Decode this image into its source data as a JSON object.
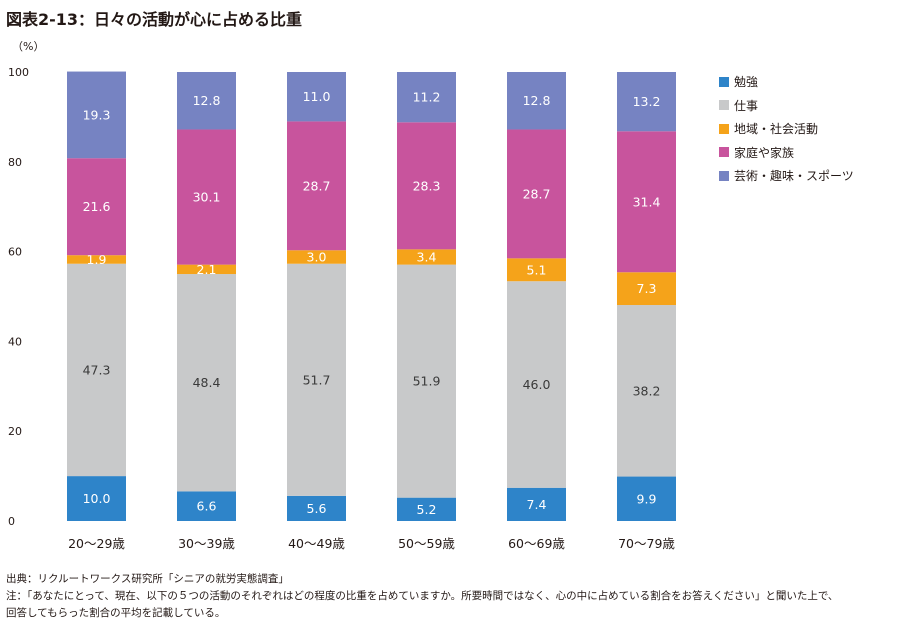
{
  "title": "図表2-13：日々の活動が心に占める比重",
  "chart_data": {
    "type": "bar",
    "stacked": true,
    "title": "図表2-13：日々の活動が心に占める比重",
    "ylabel": "（%）",
    "xlabel": "",
    "ylim": [
      0,
      100
    ],
    "yticks": [
      0,
      20,
      40,
      60,
      80,
      100
    ],
    "grid": false,
    "legend_position": "right",
    "categories": [
      "20〜29歳",
      "30〜39歳",
      "40〜49歳",
      "50〜59歳",
      "60〜69歳",
      "70〜79歳"
    ],
    "series": [
      {
        "name": "勉強",
        "color": "#2E84C9",
        "label_color": "#ffffff",
        "values": [
          10.0,
          6.6,
          5.6,
          5.2,
          7.4,
          9.9
        ],
        "labels": [
          "10.0",
          "6.6",
          "5.6",
          "5.2",
          "7.4",
          "9.9"
        ]
      },
      {
        "name": "仕事",
        "color": "#C8C9CA",
        "label_color": "#3a3a3a",
        "values": [
          47.3,
          48.4,
          51.7,
          51.9,
          46.0,
          38.2
        ],
        "labels": [
          "47.3",
          "48.4",
          "51.7",
          "51.9",
          "46.0",
          "38.2"
        ]
      },
      {
        "name": "地域・社会活動",
        "color": "#F5A31A",
        "label_color": "#ffffff",
        "values": [
          1.9,
          2.1,
          3.0,
          3.4,
          5.1,
          7.3
        ],
        "labels": [
          "1.9",
          "2.1",
          "3.0",
          "3.4",
          "5.1",
          "7.3"
        ]
      },
      {
        "name": "家庭や家族",
        "color": "#C8549D",
        "label_color": "#ffffff",
        "values": [
          21.6,
          30.1,
          28.7,
          28.3,
          28.7,
          31.4
        ],
        "labels": [
          "21.6",
          "30.1",
          "28.7",
          "28.3",
          "28.7",
          "31.4"
        ]
      },
      {
        "name": "芸術・趣味・スポーツ",
        "color": "#7683C2",
        "label_color": "#ffffff",
        "values": [
          19.3,
          12.8,
          11.0,
          11.2,
          12.8,
          13.2
        ],
        "labels": [
          "19.3",
          "12.8",
          "11.0",
          "11.2",
          "12.8",
          "13.2"
        ]
      }
    ]
  },
  "notes": {
    "source": "出典：リクルートワークス研究所「シニアの就労実態調査」",
    "note_line1": "注：「あなたにとって、現在、以下の５つの活動のそれぞれはどの程度の比重を占めていますか。所要時間ではなく、心の中に占めている割合をお答えください」と聞いた上で、",
    "note_line2": "回答してもらった割合の平均を記載している。"
  }
}
